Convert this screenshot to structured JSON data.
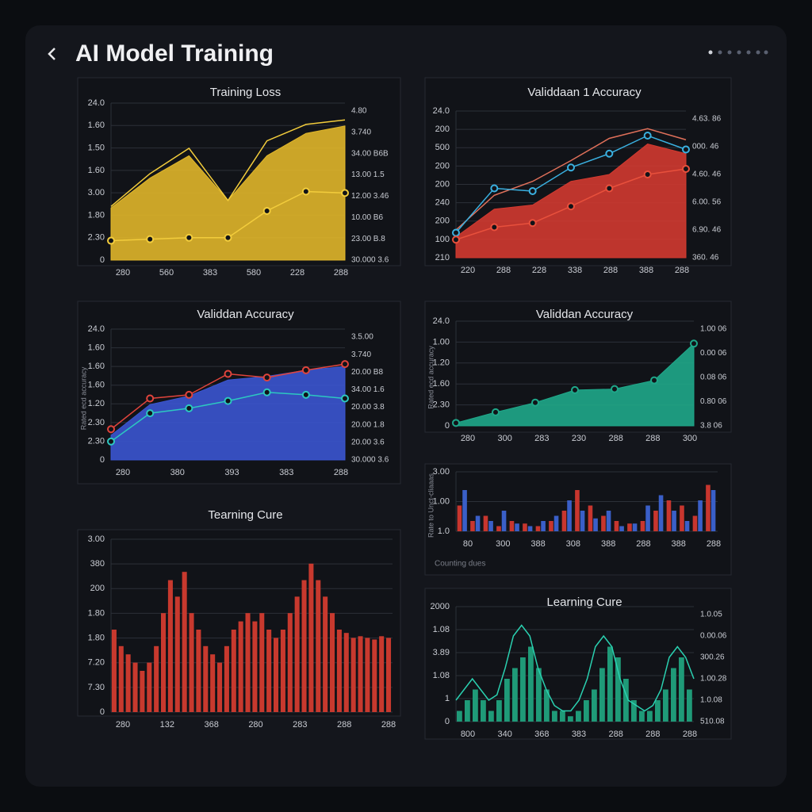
{
  "header": {
    "title": "AI Model Training"
  },
  "chart_data": [
    {
      "type": "area",
      "title": "Training Loss",
      "xlim": [
        0,
        6
      ],
      "ylim": [
        0,
        10
      ],
      "x": [
        0,
        1,
        2,
        3,
        4,
        5,
        6
      ],
      "y_labels": [
        "24.0",
        "1.60",
        "1.50",
        "1.60",
        "3.00",
        "1.80",
        "2.30",
        "0"
      ],
      "y2_labels": [
        "4.80",
        "3.740",
        "34.00 B6B",
        "13.00 1.5",
        "12.00 3.46",
        "10.00 B6",
        "23.00 B.8",
        "30.000 3.6"
      ],
      "x_labels": [
        "280",
        "560",
        "383",
        "580",
        "228",
        "288"
      ],
      "series": [
        {
          "style": "area",
          "color": "#e0b62a",
          "values": [
            3.5,
            5.5,
            7,
            4,
            7,
            8.5,
            9
          ]
        },
        {
          "style": "line",
          "color": "#f2cc3c",
          "values": [
            3.6,
            5.8,
            7.5,
            4.0,
            8,
            9.1,
            9.4
          ],
          "markers": false
        },
        {
          "style": "line",
          "color": "#f2cc3c",
          "values": [
            1.3,
            1.4,
            1.5,
            1.5,
            3.3,
            4.6,
            4.5
          ],
          "markers": true
        }
      ]
    },
    {
      "type": "area",
      "title": "Validdaan 1 Accuracy",
      "xlim": [
        0,
        6
      ],
      "ylim": [
        0,
        10
      ],
      "x": [
        0,
        1,
        2,
        3,
        4,
        5,
        6
      ],
      "y_labels": [
        "24.0",
        "200",
        "500",
        "200",
        "200",
        "240",
        "200",
        "100",
        "210"
      ],
      "y2_labels": [
        "4.63. 86",
        "000. 46",
        "4.60. 46",
        "6.00. 56",
        "6.90. 46",
        "360. 46"
      ],
      "x_labels": [
        "220",
        "288",
        "228",
        "338",
        "288",
        "388",
        "288"
      ],
      "series": [
        {
          "style": "area",
          "color": "#d23a30",
          "values": [
            1.5,
            3.5,
            3.8,
            5.5,
            6,
            8.2,
            7.5
          ]
        },
        {
          "style": "line",
          "color": "#e0705a",
          "values": [
            2,
            4.5,
            5.5,
            7,
            8.6,
            9.3,
            8.5
          ],
          "markers": false
        },
        {
          "style": "line",
          "color": "#3ab0e0",
          "values": [
            1.8,
            5,
            4.8,
            6.5,
            7.5,
            8.8,
            7.8
          ],
          "markers": true
        },
        {
          "style": "line",
          "color": "#e8503c",
          "values": [
            1.3,
            2.2,
            2.5,
            3.7,
            5,
            6,
            6.4
          ],
          "markers": true
        }
      ]
    },
    {
      "type": "area",
      "title": "Validdan Accuracy",
      "y_label": "Rated ecd accuracy",
      "xlim": [
        0,
        6
      ],
      "ylim": [
        0,
        10
      ],
      "x": [
        0,
        1,
        2,
        3,
        4,
        5,
        6
      ],
      "y_labels": [
        "24.0",
        "1.60",
        "1.60",
        "1.60",
        "1.20",
        "2.30",
        "2.30",
        "0"
      ],
      "y2_labels": [
        "3.5.00",
        "3.740",
        "20.00 B8",
        "34.00 1.6",
        "20.00 3.8",
        "20.00 1.8",
        "20.00 3.6",
        "30.000 3.6"
      ],
      "x_labels": [
        "280",
        "380",
        "393",
        "383",
        "288"
      ],
      "series": [
        {
          "style": "area",
          "color": "#3b55d0",
          "values": [
            2,
            4.5,
            5.2,
            6.5,
            6.8,
            7.3,
            7.6
          ]
        },
        {
          "style": "line",
          "color": "#e0443c",
          "values": [
            2.5,
            5,
            5.3,
            7,
            6.7,
            7.3,
            7.8
          ],
          "markers": true
        },
        {
          "style": "line",
          "color": "#2cc8c0",
          "values": [
            1.5,
            3.8,
            4.2,
            4.8,
            5.5,
            5.3,
            5
          ],
          "markers": true
        }
      ]
    },
    {
      "type": "area",
      "title": "Validdan Accuracy",
      "y_label": "Rated ecd accuracy",
      "xlim": [
        0,
        6
      ],
      "ylim": [
        0,
        10
      ],
      "x": [
        0,
        1,
        2,
        3,
        4,
        5,
        6
      ],
      "y_labels": [
        "24.0",
        "1.00",
        "1.20",
        "1.60",
        "2.30",
        "0"
      ],
      "y2_labels": [
        "1.00 06",
        "0.00 06",
        "0.08 06",
        "0.80 06",
        "3.8 06"
      ],
      "x_labels": [
        "280",
        "300",
        "283",
        "230",
        "288",
        "288",
        "300"
      ],
      "series": [
        {
          "style": "area",
          "color": "#1fa88a",
          "values": [
            0.3,
            1.4,
            2.4,
            3.7,
            3.8,
            4.7,
            8.5
          ],
          "markers": true
        }
      ]
    },
    {
      "type": "bar",
      "y_label": "Rate to Unct-cliaaas",
      "footer": "Counting dues",
      "xlim": [
        0,
        19
      ],
      "ylim": [
        0,
        10
      ],
      "x": [
        0,
        1,
        2,
        3,
        4,
        5,
        6,
        7,
        8,
        9,
        10,
        11,
        12,
        13,
        14,
        15,
        16,
        17,
        18,
        19
      ],
      "y_labels": [
        "3.00",
        "1.00",
        "1.0"
      ],
      "x_labels": [
        "80",
        "300",
        "388",
        "308",
        "388",
        "288",
        "388",
        "288"
      ],
      "series": [
        {
          "style": "bar",
          "color": "#c8362e",
          "values": [
            5,
            2,
            3,
            1,
            2,
            1.5,
            1,
            2,
            4,
            8,
            5,
            3,
            2,
            1.5,
            2,
            4,
            6,
            5,
            3,
            9
          ]
        },
        {
          "style": "bar",
          "color": "#3a5fc8",
          "values": [
            8,
            3,
            2,
            4,
            1.5,
            1,
            2,
            3,
            6,
            4,
            2.5,
            4,
            1,
            1.5,
            5,
            7,
            4,
            2,
            6,
            8
          ]
        }
      ]
    },
    {
      "type": "bar",
      "title": "Learning Cure",
      "xlim": [
        0,
        29
      ],
      "ylim": [
        0,
        10
      ],
      "x": [
        0,
        1,
        2,
        3,
        4,
        5,
        6,
        7,
        8,
        9,
        10,
        11,
        12,
        13,
        14,
        15,
        16,
        17,
        18,
        19,
        20,
        21,
        22,
        23,
        24,
        25,
        26,
        27,
        28,
        29
      ],
      "y_labels": [
        "2000",
        "1.08",
        "3.89",
        "1.08",
        "1",
        "0"
      ],
      "y2_labels": [
        "1.0.05",
        "0.00.06",
        "300.26",
        "1.00.28",
        "1.0.08",
        "510.08"
      ],
      "x_labels": [
        "800",
        "340",
        "368",
        "383",
        "288",
        "288",
        "288"
      ],
      "series": [
        {
          "style": "bar",
          "color": "#1f9a78",
          "values": [
            1,
            2,
            3,
            2,
            1,
            2,
            4,
            5,
            6,
            7,
            5,
            3,
            1,
            1,
            0.5,
            1,
            2,
            3,
            5,
            7,
            6,
            4,
            2,
            1,
            1,
            2,
            3,
            5,
            6,
            3
          ]
        },
        {
          "style": "line",
          "color": "#2ad0b0",
          "values": [
            2,
            3,
            4,
            3,
            2,
            2.5,
            5,
            8,
            9,
            8,
            5,
            3,
            1.5,
            1,
            1,
            2,
            4,
            7,
            8,
            7,
            4,
            2,
            1.5,
            1,
            1.5,
            3,
            6,
            7,
            6,
            4
          ],
          "markers": false
        }
      ]
    },
    {
      "type": "bar",
      "title": "Tearning Cure",
      "xlim": [
        0,
        39
      ],
      "ylim": [
        0,
        10
      ],
      "x": [
        0,
        1,
        2,
        3,
        4,
        5,
        6,
        7,
        8,
        9,
        10,
        11,
        12,
        13,
        14,
        15,
        16,
        17,
        18,
        19,
        20,
        21,
        22,
        23,
        24,
        25,
        26,
        27,
        28,
        29,
        30,
        31,
        32,
        33,
        34,
        35,
        36,
        37,
        38,
        39
      ],
      "y_labels": [
        "3.00",
        "380",
        "200",
        "1.80",
        "1.80",
        "7.20",
        "7.30",
        "0"
      ],
      "x_labels": [
        "280",
        "132",
        "368",
        "280",
        "283",
        "288",
        "288"
      ],
      "series": [
        {
          "style": "bar",
          "color": "#c8392e",
          "values": [
            5,
            4,
            3.5,
            3,
            2.5,
            3,
            4,
            6,
            8,
            7,
            8.5,
            6,
            5,
            4,
            3.5,
            3,
            4,
            5,
            5.5,
            6,
            5.5,
            6,
            5,
            4.5,
            5,
            6,
            7,
            8,
            9,
            8,
            7,
            6,
            5,
            4.8,
            4.5,
            4.6,
            4.5,
            4.4,
            4.6,
            4.5
          ]
        }
      ]
    }
  ]
}
